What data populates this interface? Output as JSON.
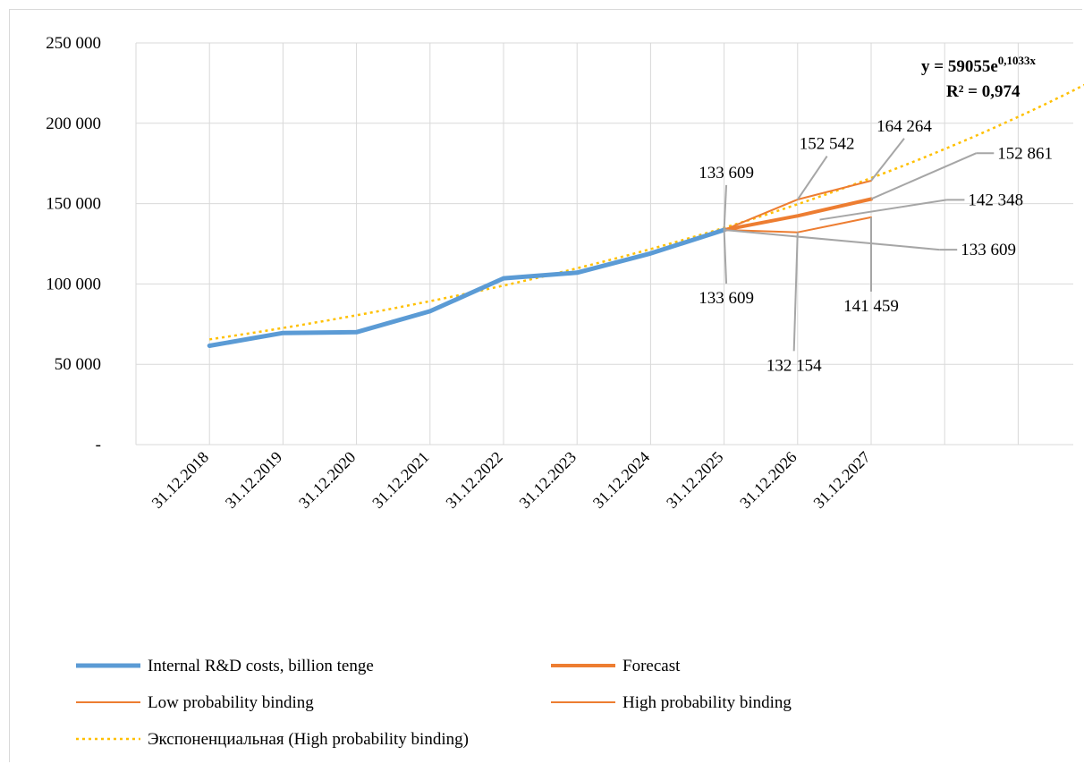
{
  "chart_data": {
    "type": "line",
    "categories": [
      "31.12.2018",
      "31.12.2019",
      "31.12.2020",
      "31.12.2021",
      "31.12.2022",
      "31.12.2023",
      "31.12.2024",
      "31.12.2025",
      "31.12.2026",
      "31.12.2027"
    ],
    "ylim": [
      0,
      250000
    ],
    "yticks": [
      0,
      50000,
      100000,
      150000,
      200000,
      250000
    ],
    "ytick_labels": [
      "-",
      "50 000",
      "100 000",
      "150 000",
      "200 000",
      "250 000"
    ],
    "grid": true,
    "legend_position": "bottom",
    "series": [
      {
        "name": "Internal R&D costs, billion tenge",
        "color": "#5b9bd5",
        "width": 5,
        "values": [
          61500,
          69500,
          70000,
          83000,
          103500,
          107000,
          119000,
          133609,
          null,
          null
        ]
      },
      {
        "name": "Forecast",
        "color": "#ed7d31",
        "width": 4,
        "values": [
          null,
          null,
          null,
          null,
          null,
          null,
          null,
          133609,
          142348,
          152861
        ]
      },
      {
        "name": "Low probability binding",
        "color": "#ed7d31",
        "width": 2,
        "values": [
          null,
          null,
          null,
          null,
          null,
          null,
          null,
          133609,
          132154,
          141459
        ]
      },
      {
        "name": "High probability binding",
        "color": "#ed7d31",
        "width": 2,
        "values": [
          null,
          null,
          null,
          null,
          null,
          null,
          null,
          133609,
          152542,
          164264
        ]
      },
      {
        "name": "Экспоненциальная (High probability binding)",
        "color": "#ffc000",
        "width": 2.5,
        "dashed": true,
        "trend": true,
        "a": 59055,
        "b": 0.1033,
        "x_start": 1,
        "x_end": 13.8
      }
    ],
    "annotations": [
      {
        "text": "133 609",
        "point": [
          7,
          133609
        ],
        "label_at": [
          7.03,
          166000
        ],
        "anchor": "middle"
      },
      {
        "text": "133 609",
        "point": [
          7,
          133609
        ],
        "label_at": [
          7.03,
          88000
        ],
        "anchor": "middle"
      },
      {
        "text": "132 154",
        "point": [
          8,
          132154
        ],
        "label_at": [
          7.95,
          46000
        ],
        "anchor": "middle"
      },
      {
        "text": "141 459",
        "point": [
          9,
          141459
        ],
        "label_at": [
          9.0,
          83000
        ],
        "anchor": "middle"
      },
      {
        "text": "152 542",
        "point": [
          8,
          152542
        ],
        "label_at": [
          8.4,
          184000
        ],
        "anchor": "middle"
      },
      {
        "text": "164 264",
        "point": [
          9,
          164264
        ],
        "label_at": [
          9.45,
          195000
        ],
        "anchor": "middle"
      },
      {
        "text": "152 861",
        "point": [
          9,
          152861
        ],
        "label_at": [
          10.5,
          178000
        ],
        "anchor": "start"
      },
      {
        "text": "142 348",
        "point": [
          8.3,
          140000
        ],
        "label_at": [
          10.1,
          149000
        ],
        "anchor": "start"
      },
      {
        "text": "133 609",
        "point": [
          7,
          133609
        ],
        "label_at": [
          10.0,
          118000
        ],
        "anchor": "start"
      }
    ],
    "trend_label": {
      "equation_prefix": "y = 59055e",
      "equation_exp": "0,1033x",
      "r2": "R² = 0,974"
    }
  }
}
